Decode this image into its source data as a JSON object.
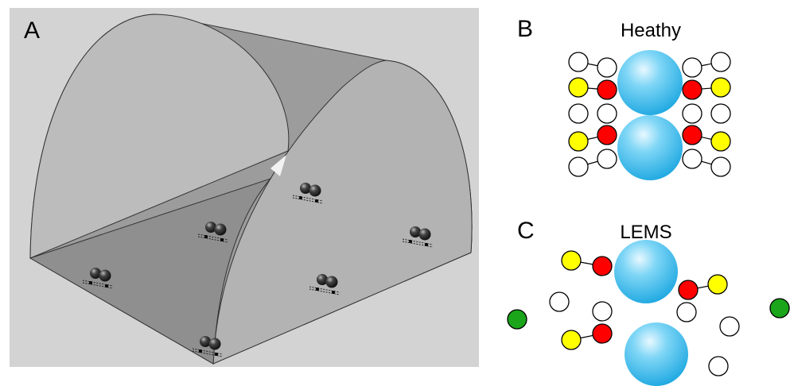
{
  "panels": [
    {
      "label": "A"
    },
    {
      "label": "B",
      "title": "Heathy"
    },
    {
      "label": "C",
      "title": "LEMS"
    }
  ]
}
